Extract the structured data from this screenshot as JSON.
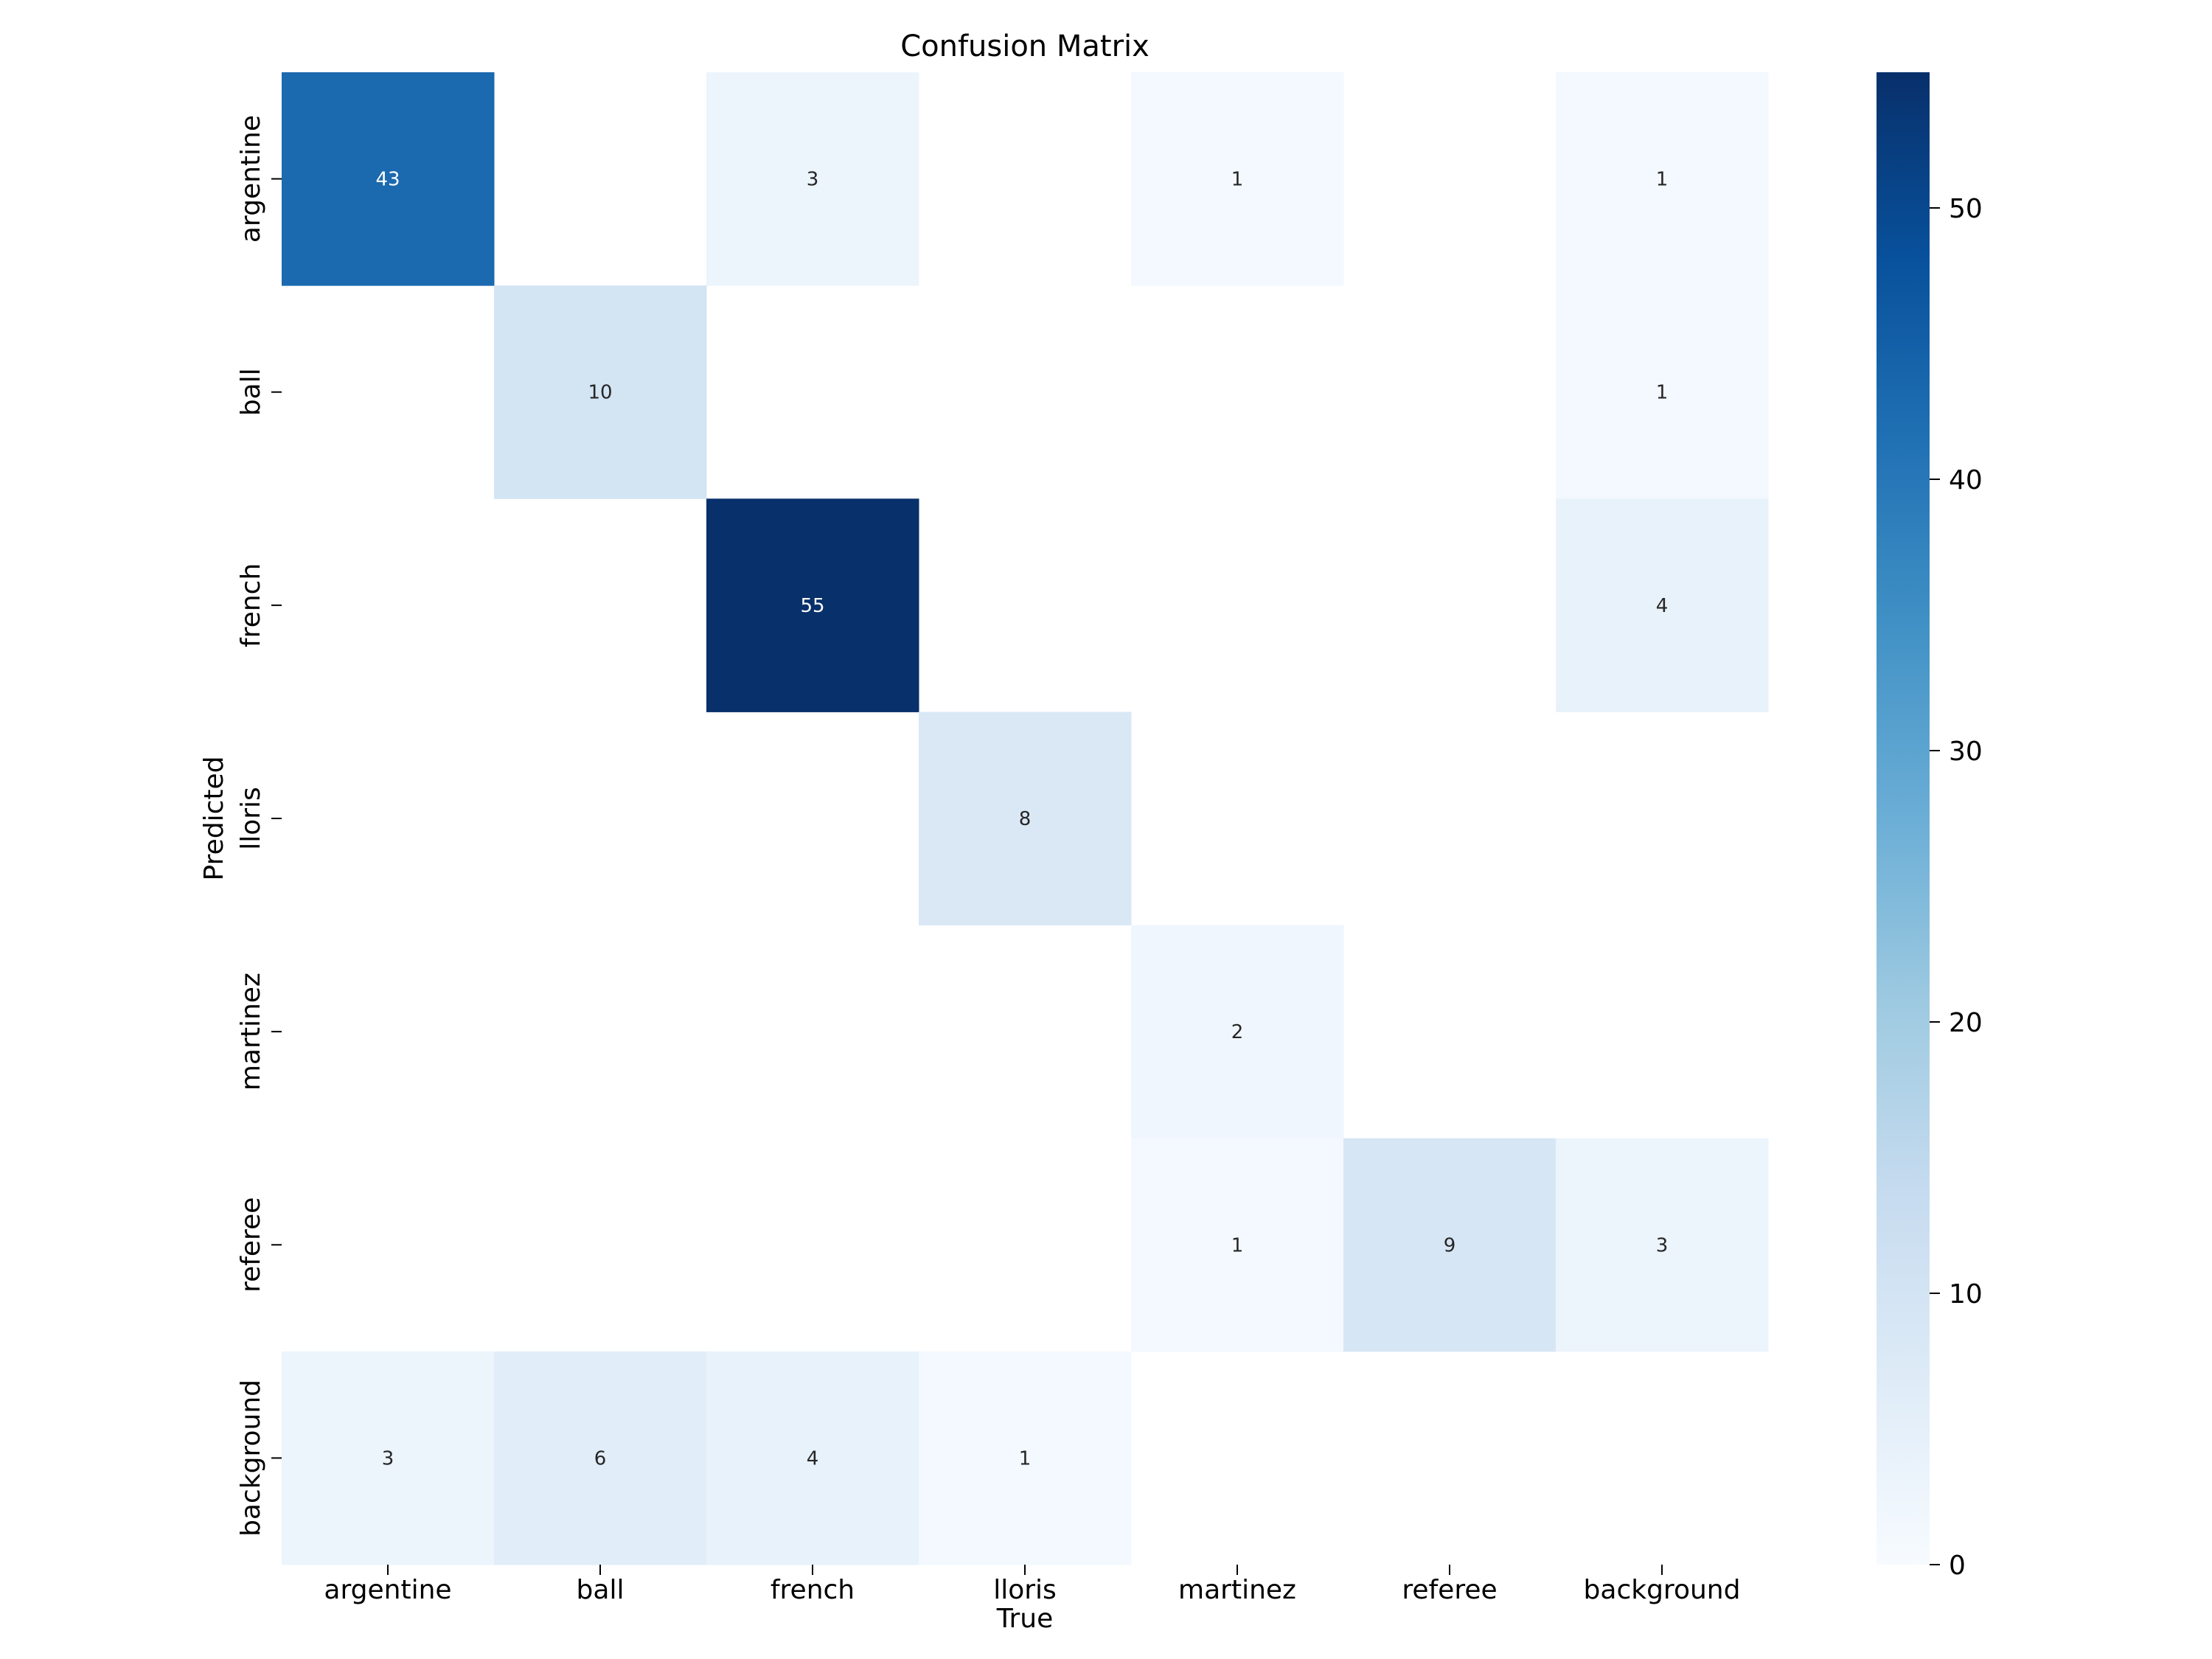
{
  "chart_data": {
    "type": "heatmap",
    "title": "Confusion Matrix",
    "xlabel": "True",
    "ylabel": "Predicted",
    "x_categories": [
      "argentine",
      "ball",
      "french",
      "lloris",
      "martinez",
      "referee",
      "background"
    ],
    "y_categories": [
      "argentine",
      "ball",
      "french",
      "lloris",
      "martinez",
      "referee",
      "background"
    ],
    "matrix": [
      [
        43,
        0,
        3,
        0,
        1,
        0,
        1
      ],
      [
        0,
        10,
        0,
        0,
        0,
        0,
        1
      ],
      [
        0,
        0,
        55,
        0,
        0,
        0,
        4
      ],
      [
        0,
        0,
        0,
        8,
        0,
        0,
        0
      ],
      [
        0,
        0,
        0,
        0,
        2,
        0,
        0
      ],
      [
        0,
        0,
        0,
        0,
        1,
        9,
        3
      ],
      [
        3,
        6,
        4,
        1,
        0,
        0,
        0
      ]
    ],
    "blank_value": 0,
    "vmin": 0,
    "vmax": 55,
    "colormap": "Blues",
    "colorbar_ticks": [
      0,
      10,
      20,
      30,
      40,
      50
    ],
    "grid": false
  }
}
